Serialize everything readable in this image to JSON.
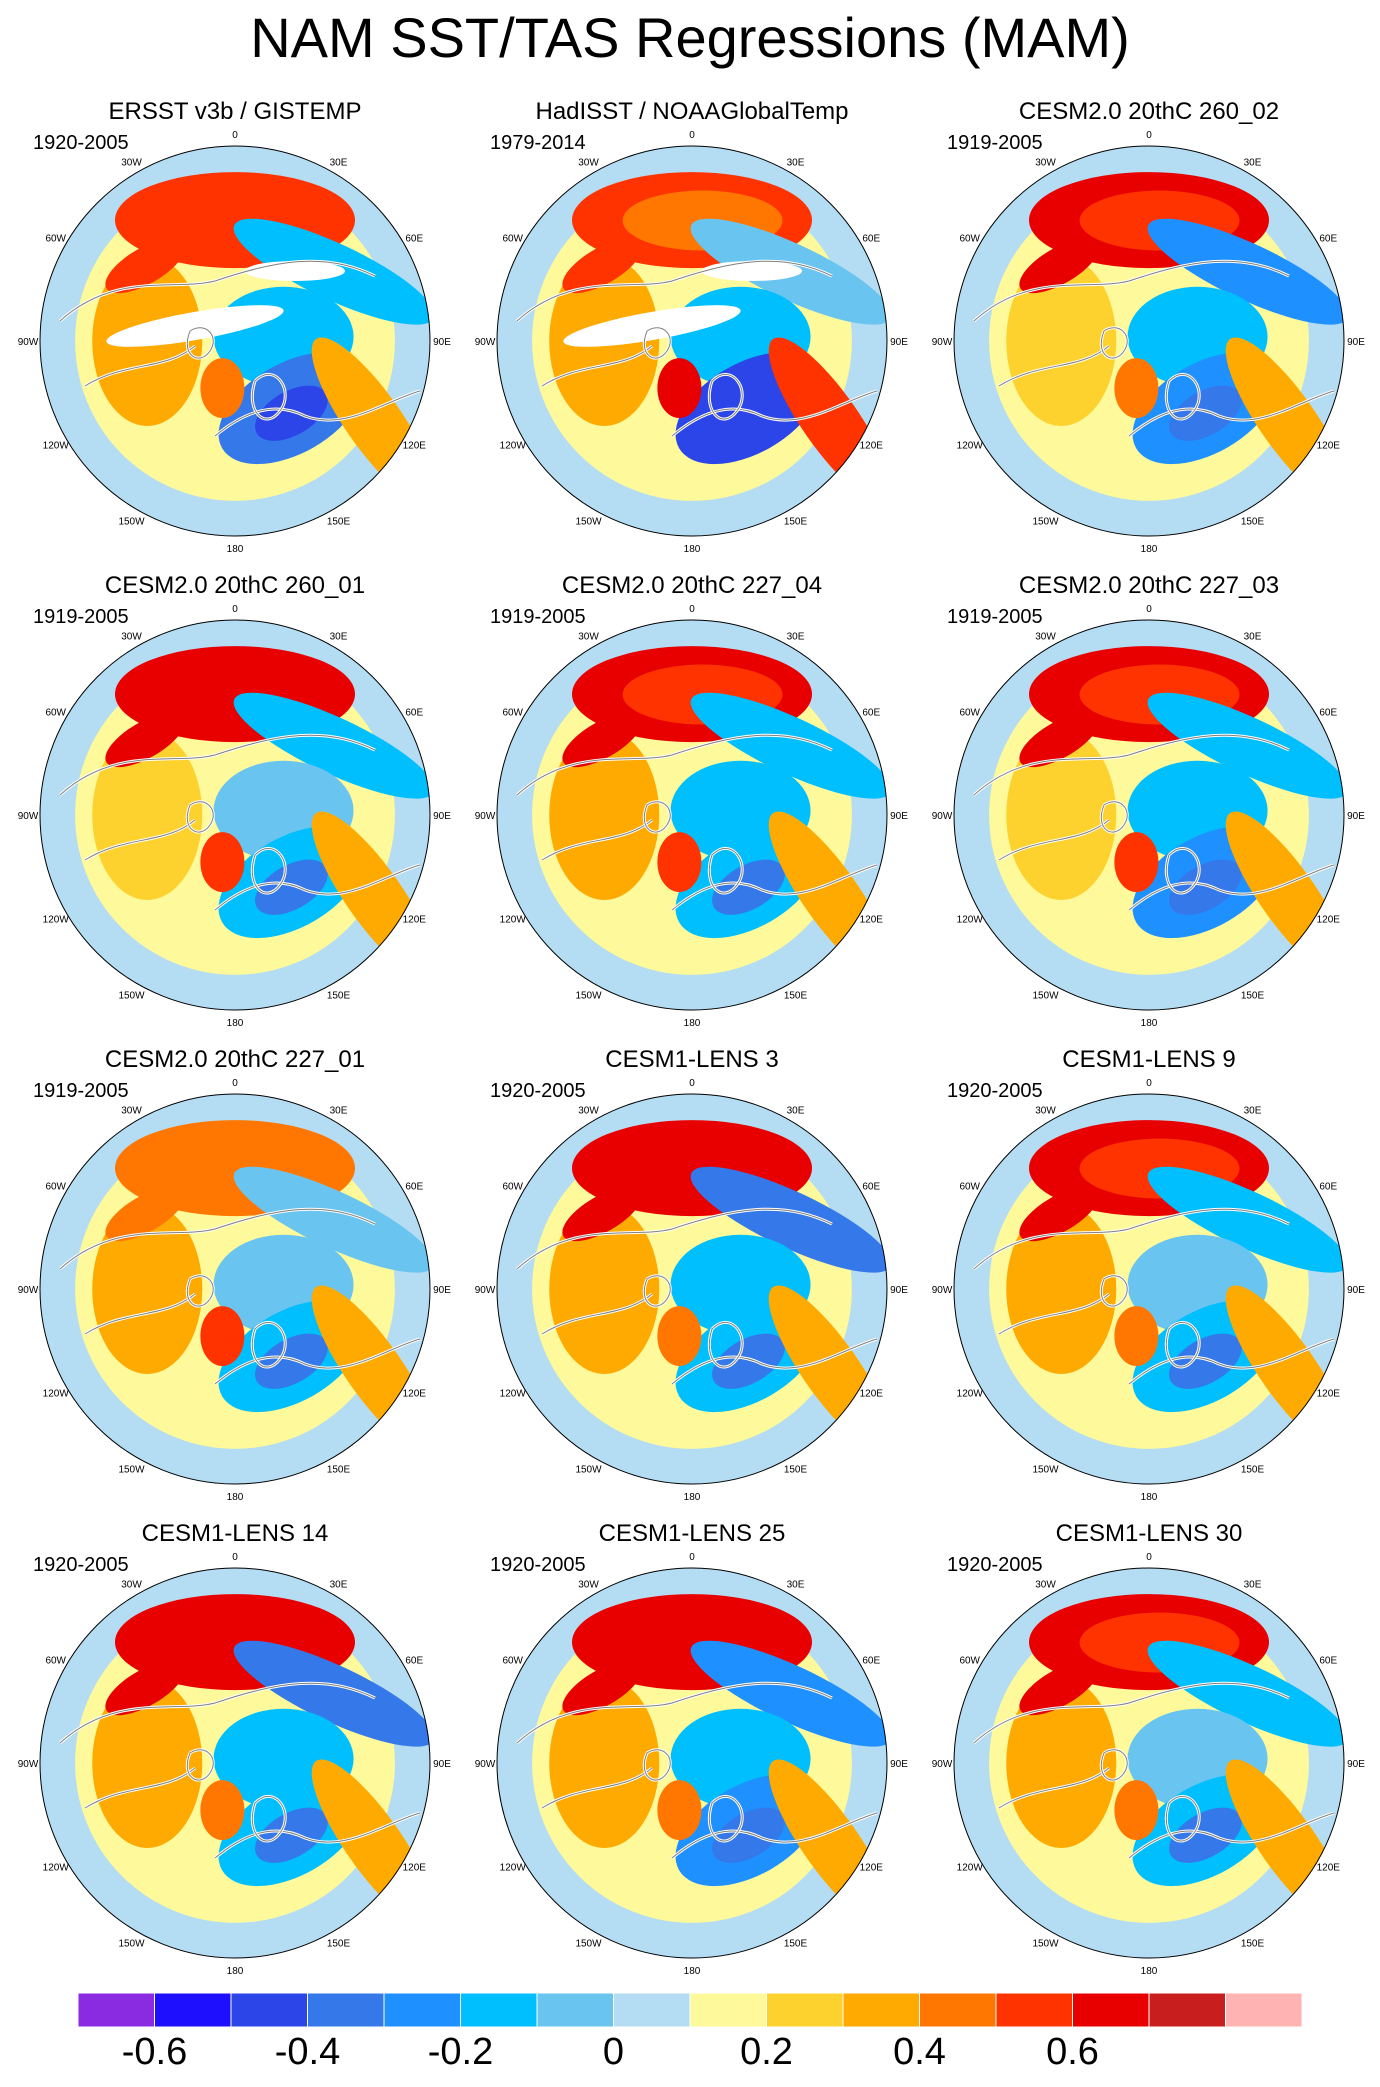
{
  "title": "NAM SST/TAS Regressions (MAM)",
  "colors": {
    "palette": [
      "#8a2be2",
      "#1f0fff",
      "#2b45e8",
      "#3478ea",
      "#1f90ff",
      "#00bfff",
      "#6ac4f0",
      "#b4dcf2",
      "#fef99a",
      "#fed22e",
      "#feaa00",
      "#ff7700",
      "#ff3300",
      "#e80000",
      "#c81e1e",
      "#ffb3b3"
    ],
    "land_outline": "#808080",
    "coast": "#ffffff"
  },
  "longitude_labels": [
    "180",
    "150E",
    "120E",
    "90E",
    "60E",
    "30E",
    "0",
    "30W",
    "60W",
    "90W",
    "120W",
    "150W"
  ],
  "colorbar": {
    "labels": [
      "-0.6",
      "-0.4",
      "-0.2",
      "0",
      "0.2",
      "0.4",
      "0.6"
    ]
  },
  "panels": [
    {
      "title": "ERSST v3b / GISTEMP",
      "period": "1920-2005",
      "pattern": {
        "pac_pos": 0.45,
        "pac_neg": -0.25,
        "atl_neg": -0.45,
        "atl_pos": 0.25,
        "asia_pos": 0.2,
        "na_neg": -0.2,
        "missing": true
      }
    },
    {
      "title": "HadISST / NOAAGlobalTemp",
      "period": "1979-2014",
      "pattern": {
        "pac_pos": 0.4,
        "pac_neg": -0.1,
        "atl_neg": -0.5,
        "atl_pos": 0.4,
        "asia_pos": 0.25,
        "na_neg": -0.2,
        "missing": true
      }
    },
    {
      "title": "CESM2.0 20thC 260_02",
      "period": "1919-2005",
      "pattern": {
        "pac_pos": 0.5,
        "pac_neg": -0.35,
        "atl_neg": -0.35,
        "atl_pos": 0.2,
        "asia_pos": 0.1,
        "na_neg": -0.2,
        "missing": false
      }
    },
    {
      "title": "CESM2.0 20thC 260_01",
      "period": "1919-2005",
      "pattern": {
        "pac_pos": 0.6,
        "pac_neg": -0.25,
        "atl_neg": -0.3,
        "atl_pos": 0.3,
        "asia_pos": 0.15,
        "na_neg": -0.15,
        "missing": false
      }
    },
    {
      "title": "CESM2.0 20thC 227_04",
      "period": "1919-2005",
      "pattern": {
        "pac_pos": 0.55,
        "pac_neg": -0.3,
        "atl_neg": -0.3,
        "atl_pos": 0.3,
        "asia_pos": 0.2,
        "na_neg": -0.2,
        "missing": false
      }
    },
    {
      "title": "CESM2.0 20thC 227_03",
      "period": "1919-2005",
      "pattern": {
        "pac_pos": 0.5,
        "pac_neg": -0.25,
        "atl_neg": -0.35,
        "atl_pos": 0.3,
        "asia_pos": 0.15,
        "na_neg": -0.2,
        "missing": false
      }
    },
    {
      "title": "CESM2.0 20thC 227_01",
      "period": "1919-2005",
      "pattern": {
        "pac_pos": 0.35,
        "pac_neg": -0.15,
        "atl_neg": -0.3,
        "atl_pos": 0.3,
        "asia_pos": 0.2,
        "na_neg": -0.15,
        "missing": false
      }
    },
    {
      "title": "CESM1-LENS 3",
      "period": "1920-2005",
      "pattern": {
        "pac_pos": 0.6,
        "pac_neg": -0.45,
        "atl_neg": -0.3,
        "atl_pos": 0.2,
        "asia_pos": 0.25,
        "na_neg": -0.2,
        "missing": false
      }
    },
    {
      "title": "CESM1-LENS 9",
      "period": "1920-2005",
      "pattern": {
        "pac_pos": 0.55,
        "pac_neg": -0.3,
        "atl_neg": -0.3,
        "atl_pos": 0.2,
        "asia_pos": 0.25,
        "na_neg": -0.15,
        "missing": false
      }
    },
    {
      "title": "CESM1-LENS 14",
      "period": "1920-2005",
      "pattern": {
        "pac_pos": 0.6,
        "pac_neg": -0.45,
        "atl_neg": -0.3,
        "atl_pos": 0.25,
        "asia_pos": 0.25,
        "na_neg": -0.2,
        "missing": false
      }
    },
    {
      "title": "CESM1-LENS 25",
      "period": "1920-2005",
      "pattern": {
        "pac_pos": 0.6,
        "pac_neg": -0.35,
        "atl_neg": -0.35,
        "atl_pos": 0.25,
        "asia_pos": 0.25,
        "na_neg": -0.2,
        "missing": false
      }
    },
    {
      "title": "CESM1-LENS 30",
      "period": "1920-2005",
      "pattern": {
        "pac_pos": 0.55,
        "pac_neg": -0.25,
        "atl_neg": -0.3,
        "atl_pos": 0.2,
        "asia_pos": 0.25,
        "na_neg": -0.15,
        "missing": false
      }
    }
  ]
}
